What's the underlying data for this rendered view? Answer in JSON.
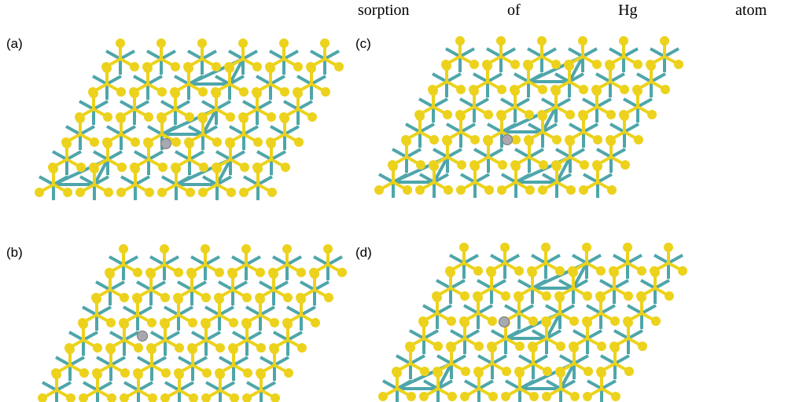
{
  "caption_fragment": "sorption of Hg atom",
  "panels": [
    {
      "label": "(a)"
    },
    {
      "label": "(b)"
    },
    {
      "label": "(c)"
    },
    {
      "label": "(d)"
    }
  ]
}
